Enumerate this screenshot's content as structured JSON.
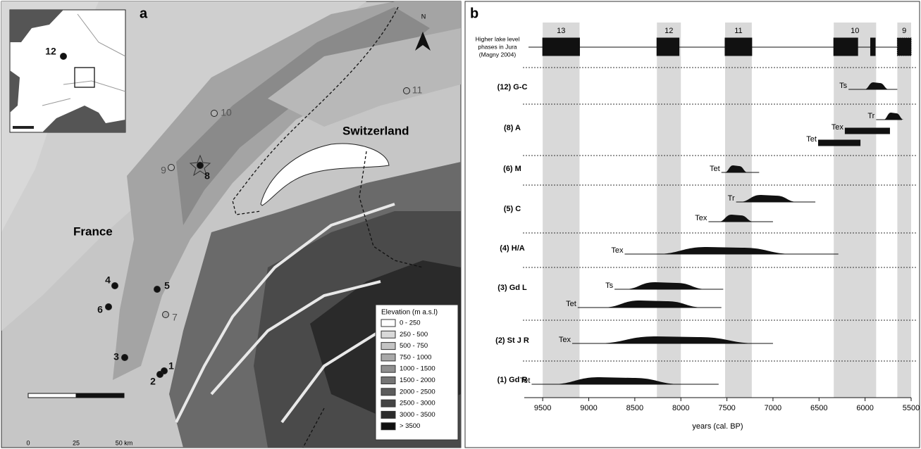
{
  "map": {
    "label": "a",
    "north": "N",
    "countries": [
      "France",
      "Switzerland"
    ],
    "sites": [
      {
        "label": "1",
        "color": "#111111"
      },
      {
        "label": "2",
        "color": "#111111"
      },
      {
        "label": "3",
        "color": "#111111"
      },
      {
        "label": "4",
        "color": "#111111"
      },
      {
        "label": "5",
        "color": "#111111"
      },
      {
        "label": "6",
        "color": "#111111"
      },
      {
        "label": "7",
        "color": "#b0b0b0"
      },
      {
        "label": "8",
        "color": "#111111"
      },
      {
        "label": "9",
        "color": "#b0b0b0"
      },
      {
        "label": "10",
        "color": "#b0b0b0"
      },
      {
        "label": "11",
        "color": "#b0b0b0"
      },
      {
        "label": "12",
        "color": "#111111"
      }
    ],
    "legend": {
      "title": "Elevation (m a.s.l)",
      "entries": [
        {
          "label": "0 - 250",
          "color": "#ffffff"
        },
        {
          "label": "250 - 500",
          "color": "#d9d9d9"
        },
        {
          "label": "500 - 750",
          "color": "#c4c4c4"
        },
        {
          "label": "750 - 1000",
          "color": "#a9a9a9"
        },
        {
          "label": "1000 - 1500",
          "color": "#8f8f8f"
        },
        {
          "label": "1500 - 2000",
          "color": "#757575"
        },
        {
          "label": "2000 - 2500",
          "color": "#5c5c5c"
        },
        {
          "label": "2500 - 3000",
          "color": "#444444"
        },
        {
          "label": "3000 - 3500",
          "color": "#2b2b2b"
        },
        {
          "label": "> 3500",
          "color": "#0f0f0f"
        }
      ]
    },
    "scale": [
      "0",
      "25",
      "50 km"
    ]
  },
  "chart_data": {
    "type": "range",
    "label": "b",
    "header": [
      "Higher lake level",
      "phases in Jura",
      "(Magny 2004)"
    ],
    "phases": [
      {
        "name": "13",
        "range": [
          9500,
          9100
        ]
      },
      {
        "name": "12",
        "range": [
          8260,
          8000
        ]
      },
      {
        "name": "11",
        "range": [
          7520,
          7230
        ]
      },
      {
        "name": "10",
        "range": [
          6340,
          5880
        ]
      },
      {
        "name": "9",
        "range": [
          5650,
          5500
        ]
      }
    ],
    "lake_levels": [
      [
        9500,
        9100
      ],
      [
        8260,
        8020
      ],
      [
        7520,
        7230
      ],
      [
        6340,
        6080
      ],
      [
        5940,
        5890
      ],
      [
        5650,
        5500
      ]
    ],
    "rows": [
      {
        "name": "(12) G-C",
        "samples": [
          {
            "name": "Ts",
            "style": "curve",
            "line": [
              6180,
              5650
            ],
            "peak": [
              5960,
              5790
            ]
          }
        ]
      },
      {
        "name": "(8) A",
        "samples": [
          {
            "name": "Tr",
            "style": "curve",
            "line": [
              5880,
              5600
            ],
            "peak": [
              5760,
              5620
            ]
          },
          {
            "name": "Tex",
            "style": "bar",
            "line": [
              6220,
              5730
            ]
          },
          {
            "name": "Tet",
            "style": "bar",
            "line": [
              6510,
              6050
            ]
          }
        ]
      },
      {
        "name": "(6) M",
        "samples": [
          {
            "name": "Tet",
            "style": "curve",
            "line": [
              7560,
              7150
            ],
            "peak": [
              7480,
              7320
            ]
          }
        ]
      },
      {
        "name": "(5) C",
        "samples": [
          {
            "name": "Tr",
            "style": "curve",
            "line": [
              7400,
              6540
            ],
            "peak": [
              7250,
              6850
            ]
          },
          {
            "name": "Tex",
            "style": "curve",
            "line": [
              7700,
              7000
            ],
            "peak": [
              7520,
              7280
            ]
          }
        ]
      },
      {
        "name": "(4) H/A",
        "samples": [
          {
            "name": "Tex",
            "style": "curve",
            "line": [
              8610,
              6290
            ],
            "peak": [
              8000,
              7050
            ]
          }
        ]
      },
      {
        "name": "(3) Gd L",
        "samples": [
          {
            "name": "Ts",
            "style": "curve",
            "line": [
              8720,
              7540
            ],
            "peak": [
              8450,
              7880
            ]
          },
          {
            "name": "Tet",
            "style": "curve",
            "line": [
              9120,
              7560
            ],
            "peak": [
              8650,
              7950
            ]
          }
        ]
      },
      {
        "name": "(2) St J R",
        "samples": [
          {
            "name": "Tex",
            "style": "curve",
            "line": [
              9180,
              7000
            ],
            "peak": [
              8600,
              7480
            ]
          }
        ]
      },
      {
        "name": "(1) Gd R",
        "samples": [
          {
            "name": "Tet",
            "style": "curve",
            "line": [
              9620,
              7590
            ],
            "peak": [
              9150,
              8250
            ]
          }
        ]
      }
    ],
    "xlim": [
      9700,
      5500
    ],
    "xticks": [
      9500,
      9000,
      8500,
      8000,
      7500,
      7000,
      6500,
      6000,
      5500
    ],
    "xlabel": "years (cal. BP)"
  }
}
